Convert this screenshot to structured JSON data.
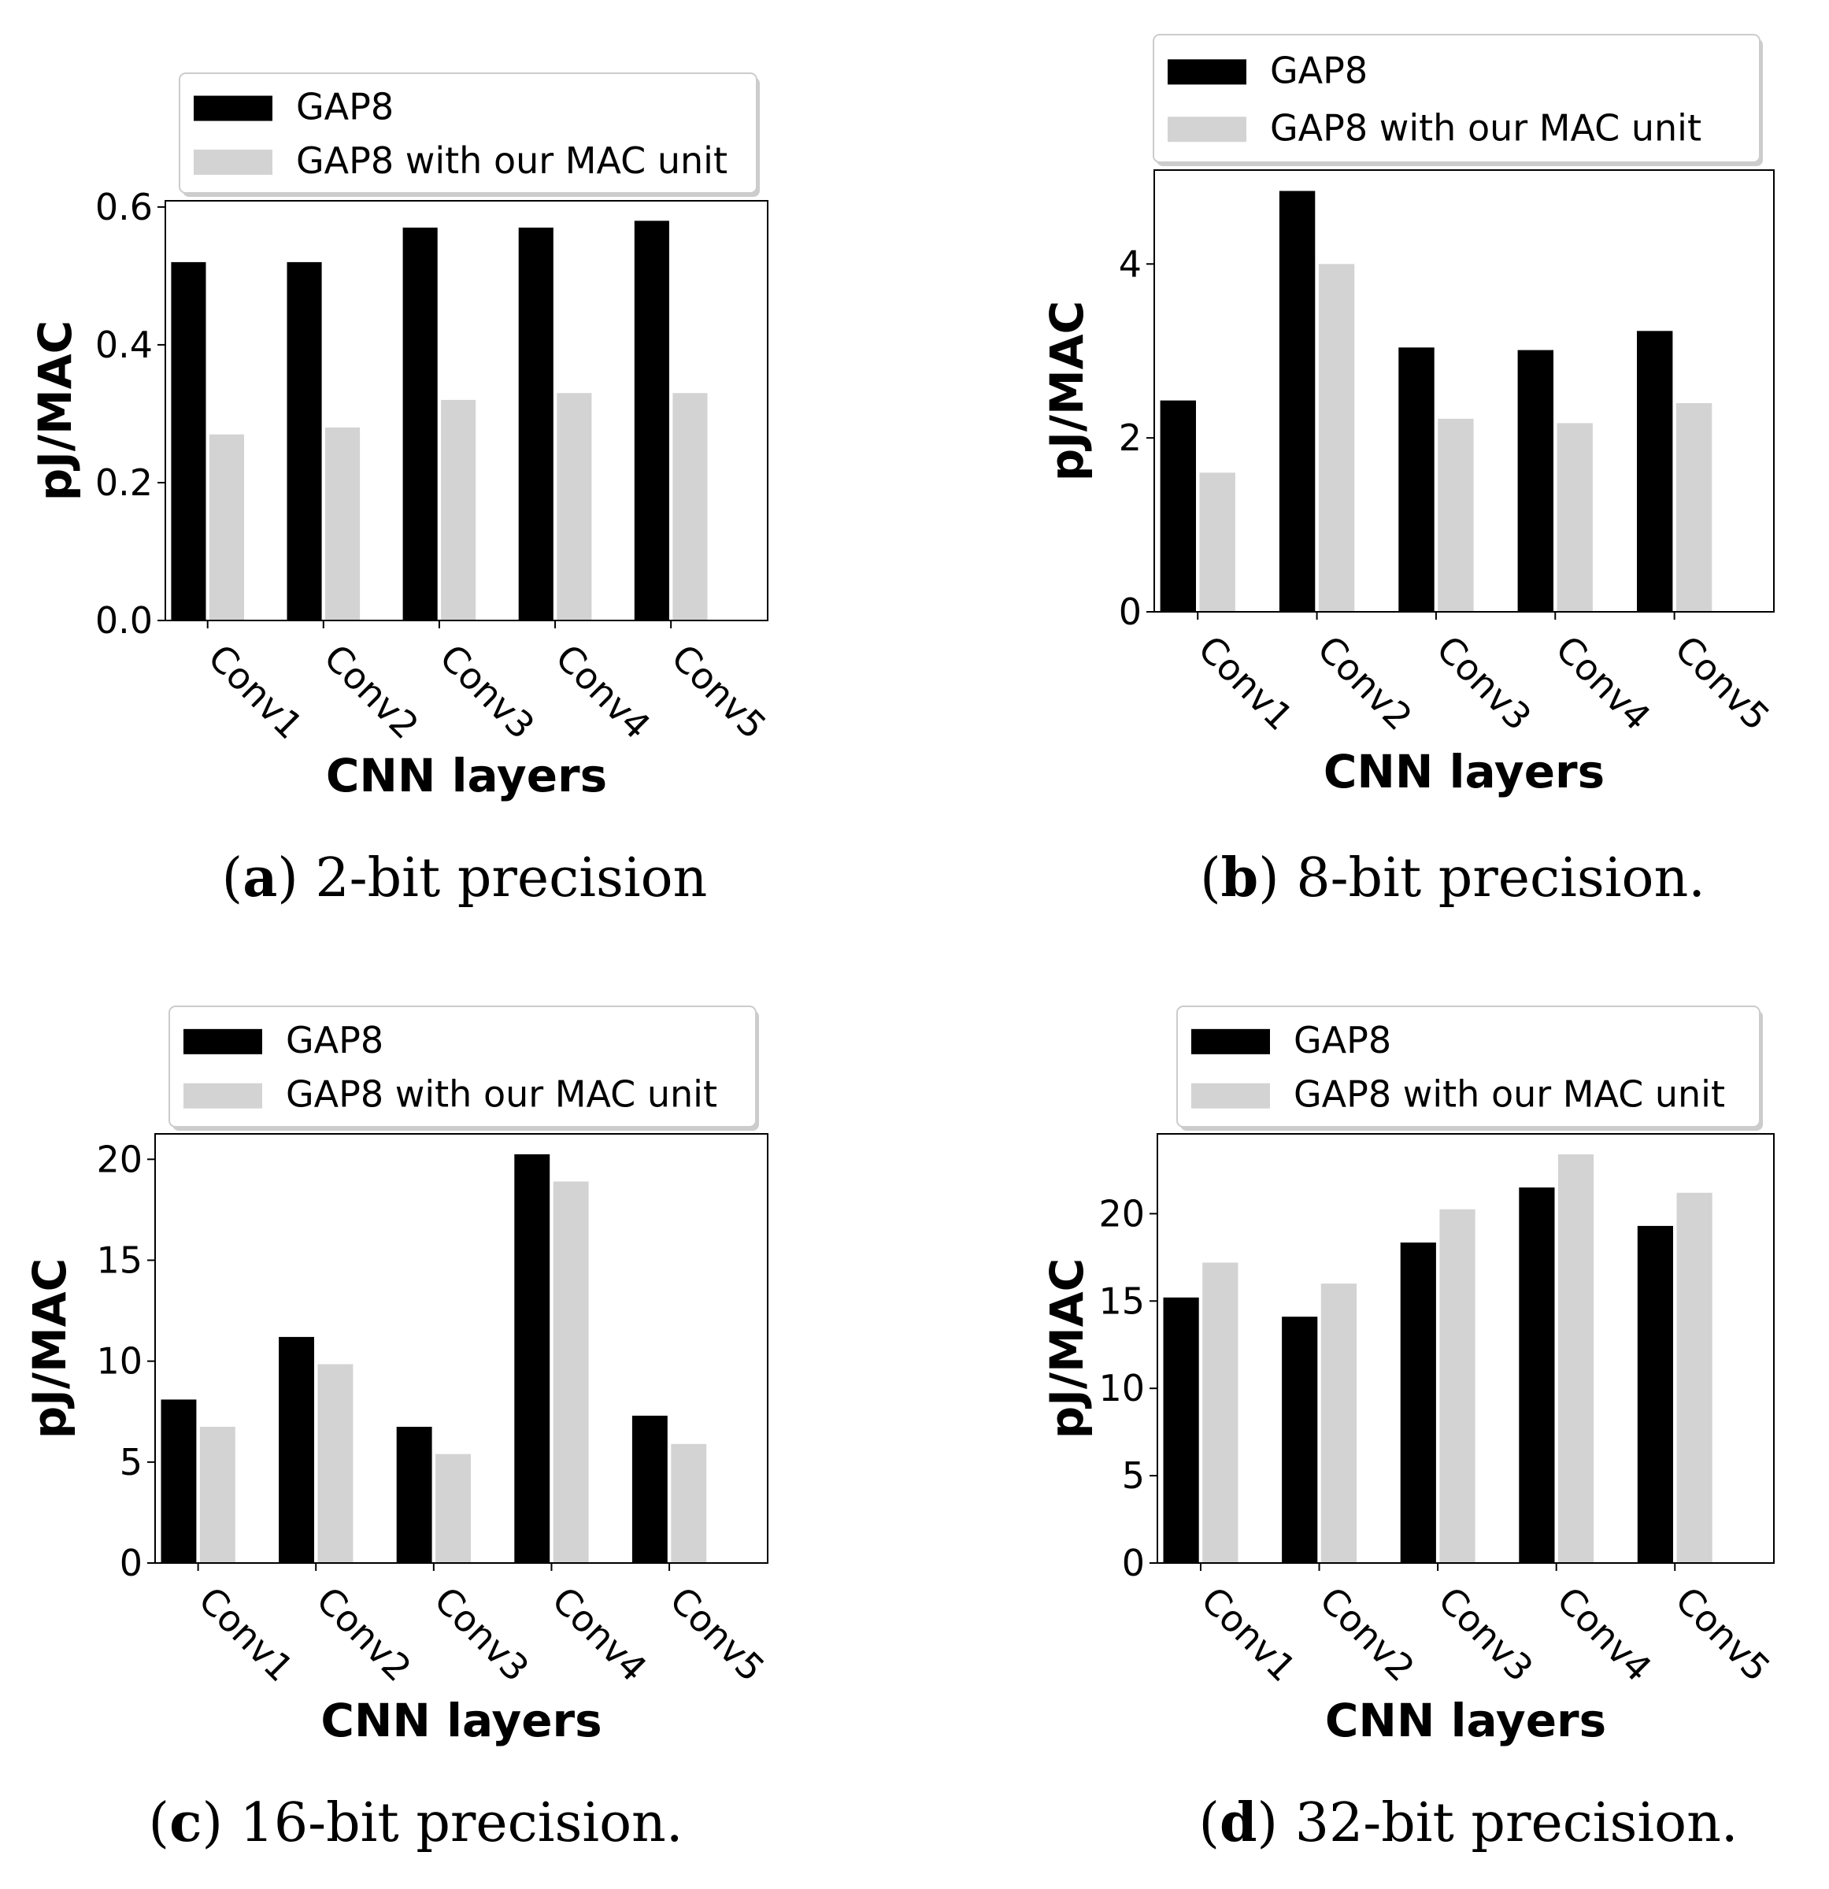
{
  "chart_data": [
    {
      "type": "bar",
      "caption_label": "a",
      "caption_text": "2-bit precision",
      "categories": [
        "Conv1",
        "Conv2",
        "Conv3",
        "Conv4",
        "Conv5"
      ],
      "series": [
        {
          "name": "GAP8",
          "color": "#000000",
          "values": [
            0.52,
            0.52,
            0.57,
            0.57,
            0.58
          ]
        },
        {
          "name": "GAP8 with our MAC unit",
          "color": "#d3d3d3",
          "values": [
            0.27,
            0.28,
            0.32,
            0.33,
            0.33
          ]
        }
      ],
      "xlabel": "CNN layers",
      "ylabel": "pJ/MAC",
      "ylim": [
        0,
        0.609
      ],
      "yticks": [
        0.0,
        0.2,
        0.4,
        0.6
      ],
      "ytick_labels": [
        "0.0",
        "0.2",
        "0.4",
        "0.6"
      ],
      "legend": "top"
    },
    {
      "type": "bar",
      "caption_label": "b",
      "caption_text": "8-bit precision.",
      "categories": [
        "Conv1",
        "Conv2",
        "Conv3",
        "Conv4",
        "Conv5"
      ],
      "series": [
        {
          "name": "GAP8",
          "color": "#000000",
          "values": [
            2.43,
            4.84,
            3.04,
            3.01,
            3.23
          ]
        },
        {
          "name": "GAP8 with our MAC unit",
          "color": "#d3d3d3",
          "values": [
            1.6,
            4.0,
            2.22,
            2.17,
            2.4
          ]
        }
      ],
      "xlabel": "CNN layers",
      "ylabel": "pJ/MAC",
      "ylim": [
        0,
        5.08
      ],
      "yticks": [
        0,
        2,
        4
      ],
      "ytick_labels": [
        "0",
        "2",
        "4"
      ],
      "legend": "top"
    },
    {
      "type": "bar",
      "caption_label": "c",
      "caption_text": "16-bit precision.",
      "categories": [
        "Conv1",
        "Conv2",
        "Conv3",
        "Conv4",
        "Conv5"
      ],
      "series": [
        {
          "name": "GAP8",
          "color": "#000000",
          "values": [
            8.1,
            11.2,
            6.75,
            20.25,
            7.3
          ]
        },
        {
          "name": "GAP8 with our MAC unit",
          "color": "#d3d3d3",
          "values": [
            6.75,
            9.85,
            5.4,
            18.9,
            5.9
          ]
        }
      ],
      "xlabel": "CNN layers",
      "ylabel": "pJ/MAC",
      "ylim": [
        0,
        21.26
      ],
      "yticks": [
        0,
        5,
        10,
        15,
        20
      ],
      "ytick_labels": [
        "0",
        "5",
        "10",
        "15",
        "20"
      ],
      "legend": "top"
    },
    {
      "type": "bar",
      "caption_label": "d",
      "caption_text": "32-bit precision.",
      "categories": [
        "Conv1",
        "Conv2",
        "Conv3",
        "Conv4",
        "Conv5"
      ],
      "series": [
        {
          "name": "GAP8",
          "color": "#000000",
          "values": [
            15.2,
            14.1,
            18.35,
            21.5,
            19.3
          ]
        },
        {
          "name": "GAP8 with our MAC unit",
          "color": "#d3d3d3",
          "values": [
            17.2,
            16.0,
            20.25,
            23.4,
            21.2
          ]
        }
      ],
      "xlabel": "CNN layers",
      "ylabel": "pJ/MAC",
      "ylim": [
        0,
        24.57
      ],
      "yticks": [
        0,
        5,
        10,
        15,
        20
      ],
      "ytick_labels": [
        "0",
        "5",
        "10",
        "15",
        "20"
      ],
      "legend": "top"
    }
  ]
}
